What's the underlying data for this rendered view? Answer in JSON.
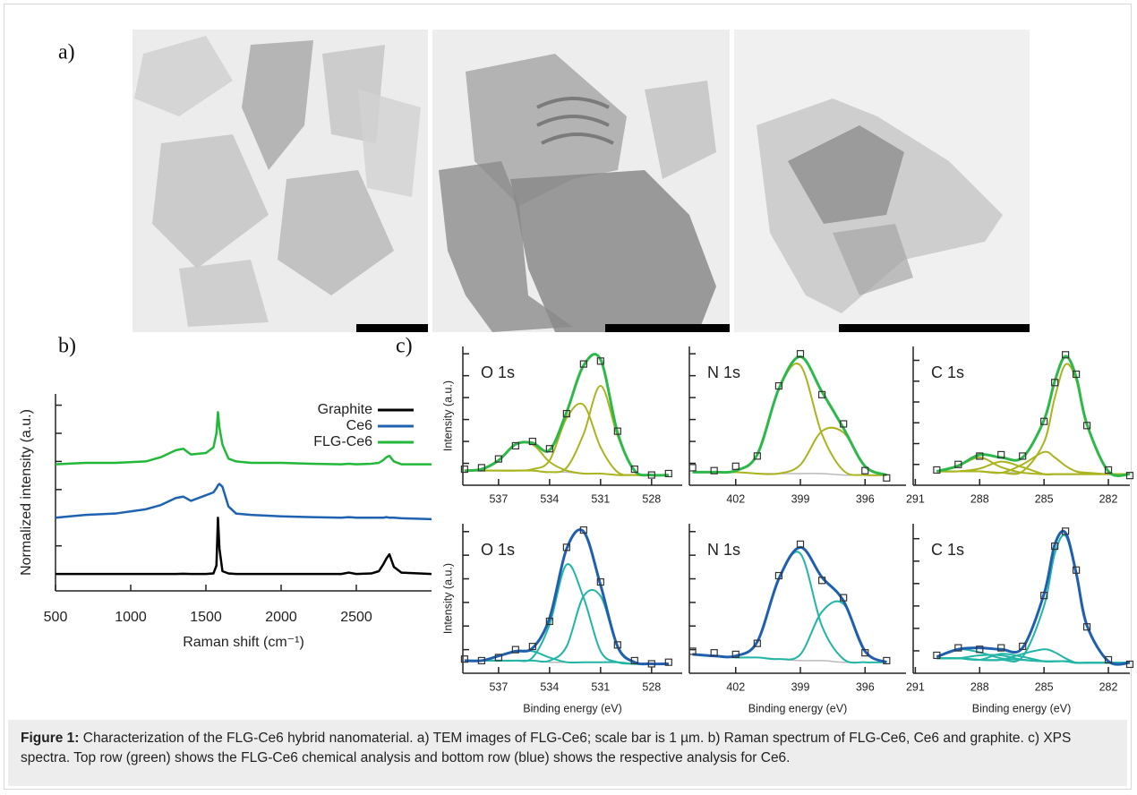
{
  "figure": {
    "panel_labels": [
      "a)",
      "b)",
      "c)"
    ],
    "caption_label": "Figure 1:",
    "caption_text": "Characterization of the FLG-Ce6 hybrid nanomaterial. a) TEM images of FLG-Ce6; scale bar is 1 µm. b) Raman spectrum of FLG-Ce6, Ce6 and graphite. c) XPS spectra. Top row (green) shows the FLG-Ce6 chemical analysis and bottom row (blue) shows the respective analysis for Ce6."
  },
  "chart_data": [
    {
      "type": "line",
      "xlabel": "Raman shift (cm⁻¹)",
      "ylabel": "Normalized intensity (a.u.)",
      "xlim": [
        500,
        3000
      ],
      "ylim": [
        0,
        7
      ],
      "xticks": [
        500,
        1000,
        1500,
        2000,
        2500
      ],
      "yticks": [
        0.6,
        1.6,
        2.6,
        3.6,
        4.6,
        5.6,
        6.6
      ],
      "legend": "upper right",
      "x": [
        500,
        700,
        900,
        1100,
        1200,
        1300,
        1350,
        1400,
        1500,
        1550,
        1570,
        1580,
        1590,
        1610,
        1650,
        1700,
        1800,
        2000,
        2200,
        2400,
        2450,
        2500,
        2600,
        2650,
        2680,
        2700,
        2720,
        2750,
        2800,
        3000
      ],
      "series": [
        {
          "name": "Graphite",
          "color": "#000000",
          "line_width": 2.5,
          "values": [
            0.6,
            0.6,
            0.6,
            0.6,
            0.6,
            0.6,
            0.61,
            0.6,
            0.6,
            0.62,
            0.9,
            2.6,
            1.5,
            0.7,
            0.62,
            0.6,
            0.6,
            0.6,
            0.6,
            0.6,
            0.65,
            0.6,
            0.62,
            0.7,
            0.95,
            1.15,
            1.3,
            0.85,
            0.65,
            0.6
          ]
        },
        {
          "name": "Ce6",
          "color": "#1e62b0",
          "line_width": 2.5,
          "values": [
            2.6,
            2.7,
            2.75,
            2.9,
            3.05,
            3.3,
            3.35,
            3.2,
            3.4,
            3.5,
            3.65,
            3.75,
            3.8,
            3.7,
            3.0,
            2.75,
            2.7,
            2.65,
            2.62,
            2.6,
            2.62,
            2.6,
            2.6,
            2.6,
            2.6,
            2.62,
            2.6,
            2.6,
            2.58,
            2.55
          ]
        },
        {
          "name": "FLG-Ce6",
          "color": "#22b83a",
          "line_width": 2.5,
          "values": [
            4.5,
            4.55,
            4.55,
            4.6,
            4.75,
            5.0,
            5.05,
            4.85,
            4.9,
            5.1,
            5.6,
            6.35,
            5.8,
            5.2,
            4.7,
            4.6,
            4.55,
            4.55,
            4.52,
            4.5,
            4.52,
            4.5,
            4.52,
            4.55,
            4.65,
            4.75,
            4.8,
            4.6,
            4.5,
            4.5
          ]
        }
      ]
    },
    {
      "type": "line",
      "title": "O 1s",
      "ylabel": "Intensity (a.u.)",
      "xlim": [
        539.1,
        526.2
      ],
      "ylim": [
        0,
        0.95
      ],
      "xticks": [
        537,
        534,
        531,
        528
      ],
      "yticks": [
        0.15,
        0.3,
        0.45,
        0.6,
        0.75,
        0.9
      ],
      "x": [
        539,
        538,
        537,
        536,
        535,
        534,
        533,
        532,
        531,
        530,
        529,
        528,
        527
      ],
      "series": [
        {
          "color": "#bbbbbb",
          "line_width": 1.5,
          "values": [
            0.1,
            0.1,
            0.1,
            0.1,
            0.1,
            0.09,
            0.09,
            0.08,
            0.08,
            0.07,
            0.07,
            0.07,
            0.07
          ]
        },
        {
          "color": "#a9b41f",
          "line_width": 2,
          "values": [
            0.1,
            0.11,
            0.17,
            0.28,
            0.28,
            0.16,
            0.1,
            0.08,
            0.08,
            0.07,
            0.07,
            0.07,
            0.07
          ]
        },
        {
          "color": "#a9b41f",
          "line_width": 2,
          "values": [
            0.1,
            0.1,
            0.1,
            0.1,
            0.11,
            0.17,
            0.46,
            0.55,
            0.26,
            0.09,
            0.07,
            0.07,
            0.07
          ]
        },
        {
          "color": "#a9b41f",
          "line_width": 2,
          "values": [
            0.1,
            0.1,
            0.1,
            0.1,
            0.1,
            0.09,
            0.12,
            0.35,
            0.68,
            0.34,
            0.1,
            0.07,
            0.07
          ]
        },
        {
          "color": "#2db84a",
          "line_width": 3,
          "values": [
            0.1,
            0.11,
            0.17,
            0.28,
            0.29,
            0.24,
            0.5,
            0.82,
            0.86,
            0.36,
            0.1,
            0.07,
            0.07
          ]
        },
        {
          "color": "#333333",
          "marker": "square",
          "values": [
            0.11,
            0.12,
            0.18,
            0.27,
            0.3,
            0.25,
            0.49,
            0.83,
            0.85,
            0.37,
            0.11,
            0.07,
            0.08
          ]
        }
      ]
    },
    {
      "type": "line",
      "title": "N 1s",
      "xlim": [
        404.15,
        394.1
      ],
      "ylim": [
        0,
        0.95
      ],
      "xticks": [
        402,
        399,
        396
      ],
      "yticks": [
        0.15,
        0.3,
        0.45,
        0.6,
        0.75,
        0.9
      ],
      "x": [
        404,
        403,
        402,
        401,
        400,
        399,
        398,
        397,
        396,
        395
      ],
      "series": [
        {
          "color": "#bbbbbb",
          "line_width": 1.5,
          "values": [
            0.09,
            0.09,
            0.09,
            0.08,
            0.08,
            0.08,
            0.08,
            0.07,
            0.07,
            0.07
          ]
        },
        {
          "color": "#a9b41f",
          "line_width": 2,
          "values": [
            0.09,
            0.09,
            0.1,
            0.21,
            0.66,
            0.82,
            0.35,
            0.1,
            0.07,
            0.07
          ]
        },
        {
          "color": "#a9b41f",
          "line_width": 2,
          "values": [
            0.09,
            0.09,
            0.09,
            0.08,
            0.08,
            0.14,
            0.37,
            0.36,
            0.13,
            0.07
          ]
        },
        {
          "color": "#2db84a",
          "line_width": 3,
          "values": [
            0.09,
            0.09,
            0.1,
            0.21,
            0.66,
            0.88,
            0.64,
            0.39,
            0.13,
            0.07
          ]
        },
        {
          "color": "#333333",
          "marker": "square",
          "values": [
            0.12,
            0.1,
            0.13,
            0.2,
            0.68,
            0.9,
            0.62,
            0.42,
            0.1,
            0.05
          ]
        }
      ]
    },
    {
      "type": "line",
      "title": "C 1s",
      "xlim": [
        291.1,
        281
      ],
      "ylim": [
        0,
        1
      ],
      "xticks": [
        291,
        288,
        285,
        282
      ],
      "yticks": [
        0.15,
        0.3,
        0.45,
        0.6,
        0.75,
        0.9
      ],
      "x": [
        290,
        289,
        288,
        287,
        286,
        285,
        284.5,
        284,
        283.5,
        283,
        282,
        281
      ],
      "series": [
        {
          "color": "#bbbbbb",
          "line_width": 1.5,
          "values": [
            0.1,
            0.1,
            0.1,
            0.09,
            0.09,
            0.08,
            0.08,
            0.08,
            0.08,
            0.08,
            0.08,
            0.08
          ]
        },
        {
          "color": "#a9b41f",
          "line_width": 2,
          "values": [
            0.1,
            0.14,
            0.2,
            0.13,
            0.09,
            0.08,
            0.08,
            0.08,
            0.08,
            0.08,
            0.08,
            0.08
          ]
        },
        {
          "color": "#a9b41f",
          "line_width": 2,
          "values": [
            0.1,
            0.1,
            0.12,
            0.17,
            0.13,
            0.08,
            0.08,
            0.08,
            0.08,
            0.08,
            0.08,
            0.08
          ]
        },
        {
          "color": "#a9b41f",
          "line_width": 2,
          "values": [
            0.1,
            0.1,
            0.1,
            0.09,
            0.15,
            0.24,
            0.2,
            0.14,
            0.1,
            0.09,
            0.08,
            0.08
          ]
        },
        {
          "color": "#a9b41f",
          "line_width": 2,
          "values": [
            0.1,
            0.1,
            0.1,
            0.09,
            0.1,
            0.31,
            0.63,
            0.87,
            0.76,
            0.43,
            0.1,
            0.08
          ]
        },
        {
          "color": "#2db84a",
          "line_width": 3,
          "values": [
            0.1,
            0.14,
            0.22,
            0.2,
            0.2,
            0.47,
            0.75,
            0.93,
            0.78,
            0.44,
            0.1,
            0.08
          ]
        },
        {
          "color": "#333333",
          "marker": "square",
          "values": [
            0.11,
            0.15,
            0.21,
            0.22,
            0.21,
            0.46,
            0.74,
            0.94,
            0.8,
            0.43,
            0.11,
            0.07
          ]
        }
      ]
    },
    {
      "type": "line",
      "title": "O 1s",
      "ylabel": "Intensity (a.u.)",
      "xlabel": "Binding energy (eV)",
      "xlim": [
        539.1,
        526.2
      ],
      "ylim": [
        0,
        0.95
      ],
      "xticks": [
        537,
        534,
        531,
        528
      ],
      "yticks": [
        0.15,
        0.3,
        0.45,
        0.6,
        0.75,
        0.9
      ],
      "x": [
        539,
        538,
        537,
        536,
        535,
        534,
        533,
        532,
        531,
        530,
        529,
        528,
        527
      ],
      "series": [
        {
          "color": "#bbbbbb",
          "line_width": 1.5,
          "values": [
            0.08,
            0.08,
            0.08,
            0.08,
            0.08,
            0.07,
            0.07,
            0.07,
            0.07,
            0.07,
            0.06,
            0.06,
            0.06
          ]
        },
        {
          "color": "#22b5a6",
          "line_width": 2,
          "values": [
            0.08,
            0.08,
            0.11,
            0.14,
            0.14,
            0.1,
            0.07,
            0.07,
            0.07,
            0.07,
            0.06,
            0.06,
            0.06
          ]
        },
        {
          "color": "#22b5a6",
          "line_width": 2,
          "values": [
            0.08,
            0.08,
            0.08,
            0.08,
            0.1,
            0.31,
            0.69,
            0.48,
            0.14,
            0.07,
            0.06,
            0.06,
            0.06
          ]
        },
        {
          "color": "#22b5a6",
          "line_width": 2,
          "values": [
            0.08,
            0.08,
            0.08,
            0.08,
            0.08,
            0.08,
            0.17,
            0.49,
            0.49,
            0.17,
            0.07,
            0.06,
            0.06
          ]
        },
        {
          "color": "#1f5fb0",
          "line_width": 3,
          "values": [
            0.08,
            0.08,
            0.11,
            0.14,
            0.16,
            0.35,
            0.79,
            0.9,
            0.56,
            0.17,
            0.07,
            0.06,
            0.06
          ]
        },
        {
          "color": "#333333",
          "marker": "square",
          "values": [
            0.09,
            0.08,
            0.1,
            0.15,
            0.17,
            0.33,
            0.8,
            0.91,
            0.58,
            0.18,
            0.08,
            0.06,
            0.07
          ]
        }
      ]
    },
    {
      "type": "line",
      "title": "N 1s",
      "xlabel": "Binding energy (eV)",
      "xlim": [
        404.15,
        394.1
      ],
      "ylim": [
        0,
        0.95
      ],
      "xticks": [
        402,
        399,
        396
      ],
      "yticks": [
        0.15,
        0.3,
        0.45,
        0.6,
        0.75,
        0.9
      ],
      "x": [
        404,
        403,
        402,
        401,
        400,
        399,
        398,
        397,
        396,
        395
      ],
      "series": [
        {
          "color": "#bbbbbb",
          "line_width": 1.5,
          "values": [
            0.12,
            0.11,
            0.1,
            0.1,
            0.09,
            0.08,
            0.08,
            0.07,
            0.07,
            0.07
          ]
        },
        {
          "color": "#22b5a6",
          "line_width": 2,
          "values": [
            0.12,
            0.11,
            0.11,
            0.2,
            0.6,
            0.76,
            0.3,
            0.09,
            0.07,
            0.07
          ]
        },
        {
          "color": "#22b5a6",
          "line_width": 2,
          "values": [
            0.12,
            0.11,
            0.1,
            0.1,
            0.09,
            0.12,
            0.39,
            0.44,
            0.14,
            0.07
          ]
        },
        {
          "color": "#1f5fb0",
          "line_width": 3,
          "values": [
            0.12,
            0.11,
            0.11,
            0.2,
            0.6,
            0.8,
            0.61,
            0.46,
            0.14,
            0.07
          ]
        },
        {
          "color": "#333333",
          "marker": "square",
          "values": [
            0.14,
            0.13,
            0.12,
            0.19,
            0.62,
            0.82,
            0.59,
            0.48,
            0.13,
            0.08
          ]
        }
      ]
    },
    {
      "type": "line",
      "title": "C 1s",
      "xlabel": "Binding energy (eV)",
      "xlim": [
        291.1,
        281
      ],
      "ylim": [
        0,
        1
      ],
      "xticks": [
        291,
        288,
        285,
        282
      ],
      "yticks": [
        0.15,
        0.3,
        0.45,
        0.6,
        0.75,
        0.9
      ],
      "x": [
        290,
        289,
        288,
        287,
        286,
        285,
        284.5,
        284,
        283.5,
        283,
        282,
        281
      ],
      "series": [
        {
          "color": "#bbbbbb",
          "line_width": 1.5,
          "values": [
            0.1,
            0.1,
            0.09,
            0.09,
            0.09,
            0.08,
            0.08,
            0.08,
            0.07,
            0.07,
            0.07,
            0.07
          ]
        },
        {
          "color": "#22b5a6",
          "line_width": 2,
          "values": [
            0.11,
            0.16,
            0.14,
            0.1,
            0.09,
            0.08,
            0.08,
            0.08,
            0.07,
            0.07,
            0.07,
            0.07
          ]
        },
        {
          "color": "#22b5a6",
          "line_width": 2,
          "values": [
            0.1,
            0.1,
            0.12,
            0.12,
            0.09,
            0.08,
            0.08,
            0.08,
            0.07,
            0.07,
            0.07,
            0.07
          ]
        },
        {
          "color": "#22b5a6",
          "line_width": 2,
          "values": [
            0.1,
            0.1,
            0.09,
            0.13,
            0.11,
            0.08,
            0.08,
            0.08,
            0.07,
            0.07,
            0.07,
            0.07
          ]
        },
        {
          "color": "#22b5a6",
          "line_width": 2,
          "values": [
            0.1,
            0.1,
            0.09,
            0.09,
            0.13,
            0.16,
            0.14,
            0.1,
            0.07,
            0.07,
            0.07,
            0.07
          ]
        },
        {
          "color": "#22b5a6",
          "line_width": 2,
          "values": [
            0.1,
            0.1,
            0.09,
            0.09,
            0.11,
            0.45,
            0.8,
            0.92,
            0.66,
            0.32,
            0.08,
            0.07
          ]
        },
        {
          "color": "#1f5fb0",
          "line_width": 3,
          "values": [
            0.11,
            0.16,
            0.17,
            0.16,
            0.17,
            0.53,
            0.86,
            0.94,
            0.67,
            0.32,
            0.08,
            0.07
          ]
        },
        {
          "color": "#333333",
          "marker": "square",
          "values": [
            0.12,
            0.17,
            0.16,
            0.17,
            0.18,
            0.52,
            0.85,
            0.95,
            0.69,
            0.31,
            0.09,
            0.06
          ]
        }
      ]
    }
  ]
}
